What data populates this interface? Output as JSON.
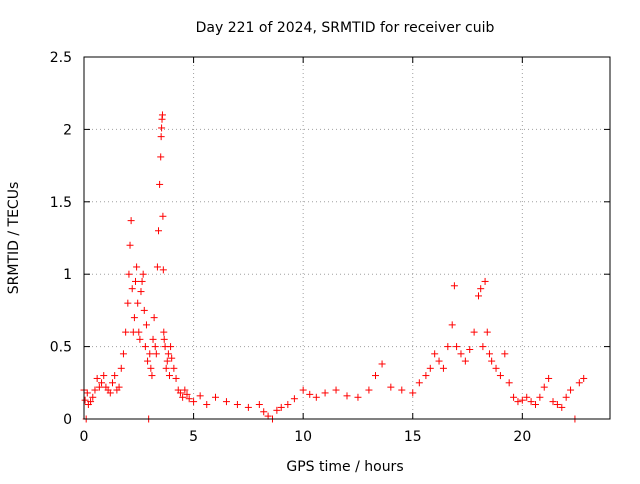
{
  "chart_data": {
    "type": "scatter",
    "title": "Day 221 of 2024, SRMTID for receiver cuib",
    "xlabel": "GPS time / hours",
    "ylabel": "SRMTID / TECUs",
    "xlim": [
      0,
      24
    ],
    "ylim": [
      0,
      2.5
    ],
    "x_ticks": [
      0,
      5,
      10,
      15,
      20
    ],
    "x_tick_labels": [
      "0",
      "5",
      "10",
      "15",
      "20"
    ],
    "y_ticks": [
      0,
      0.5,
      1,
      1.5,
      2,
      2.5
    ],
    "y_tick_labels": [
      "0",
      "0.5",
      "1",
      "1.5",
      "2",
      "2.5"
    ],
    "grid": true,
    "marker": "+",
    "marker_color": "#ff0000",
    "series": [
      {
        "name": "SRMTID",
        "x": [
          0.0,
          0.05,
          0.1,
          0.15,
          0.2,
          0.3,
          0.4,
          0.5,
          0.6,
          0.7,
          0.8,
          0.9,
          1.0,
          1.1,
          1.2,
          1.3,
          1.4,
          1.5,
          1.6,
          1.7,
          1.8,
          1.9,
          2.0,
          2.05,
          2.1,
          2.15,
          2.2,
          2.25,
          2.3,
          2.35,
          2.4,
          2.45,
          2.5,
          2.55,
          2.6,
          2.65,
          2.7,
          2.75,
          2.8,
          2.85,
          2.9,
          2.95,
          3.0,
          3.05,
          3.1,
          3.15,
          3.2,
          3.25,
          3.3,
          3.35,
          3.4,
          3.45,
          3.5,
          3.52,
          3.54,
          3.56,
          3.58,
          3.6,
          3.62,
          3.64,
          3.66,
          3.7,
          3.75,
          3.8,
          3.85,
          3.9,
          3.95,
          4.0,
          4.1,
          4.2,
          4.3,
          4.4,
          4.5,
          4.6,
          4.7,
          4.8,
          5.0,
          5.3,
          5.6,
          6.0,
          6.5,
          7.0,
          7.5,
          8.0,
          8.2,
          8.4,
          8.6,
          8.8,
          9.0,
          9.3,
          9.6,
          10.0,
          10.3,
          10.6,
          11.0,
          11.5,
          12.0,
          12.5,
          13.0,
          13.3,
          13.6,
          14.0,
          14.5,
          15.0,
          15.3,
          15.6,
          15.8,
          16.0,
          16.2,
          16.4,
          16.6,
          16.8,
          16.9,
          17.0,
          17.2,
          17.4,
          17.6,
          17.8,
          18.0,
          18.1,
          18.2,
          18.3,
          18.4,
          18.5,
          18.6,
          18.8,
          19.0,
          19.2,
          19.4,
          19.6,
          19.8,
          20.0,
          20.2,
          20.4,
          20.6,
          20.8,
          21.0,
          21.2,
          21.4,
          21.6,
          21.8,
          22.0,
          22.2,
          22.4,
          22.6,
          22.8
        ],
        "y": [
          0.2,
          0.13,
          0.0,
          0.18,
          0.1,
          0.12,
          0.15,
          0.2,
          0.28,
          0.22,
          0.25,
          0.3,
          0.22,
          0.2,
          0.18,
          0.25,
          0.3,
          0.2,
          0.22,
          0.35,
          0.45,
          0.6,
          0.8,
          1.0,
          1.2,
          1.37,
          0.9,
          0.6,
          0.7,
          0.95,
          1.05,
          0.8,
          0.6,
          0.55,
          0.88,
          0.95,
          1.0,
          0.75,
          0.5,
          0.65,
          0.4,
          0.0,
          0.45,
          0.35,
          0.3,
          0.55,
          0.7,
          0.5,
          0.45,
          1.05,
          1.3,
          1.62,
          1.81,
          1.95,
          2.01,
          2.07,
          2.1,
          1.4,
          1.03,
          0.6,
          0.55,
          0.5,
          0.35,
          0.4,
          0.45,
          0.3,
          0.5,
          0.42,
          0.35,
          0.28,
          0.2,
          0.18,
          0.15,
          0.2,
          0.17,
          0.14,
          0.12,
          0.16,
          0.1,
          0.15,
          0.12,
          0.1,
          0.08,
          0.1,
          0.05,
          0.02,
          0.0,
          0.06,
          0.08,
          0.1,
          0.14,
          0.2,
          0.17,
          0.15,
          0.18,
          0.2,
          0.16,
          0.15,
          0.2,
          0.3,
          0.38,
          0.22,
          0.2,
          0.18,
          0.25,
          0.3,
          0.35,
          0.45,
          0.4,
          0.35,
          0.5,
          0.65,
          0.92,
          0.5,
          0.45,
          0.4,
          0.48,
          0.6,
          0.85,
          0.9,
          0.5,
          0.95,
          0.6,
          0.45,
          0.4,
          0.35,
          0.3,
          0.45,
          0.25,
          0.15,
          0.12,
          0.13,
          0.15,
          0.12,
          0.1,
          0.15,
          0.22,
          0.28,
          0.12,
          0.1,
          0.08,
          0.15,
          0.2,
          0.0,
          0.25,
          0.28
        ]
      }
    ]
  }
}
